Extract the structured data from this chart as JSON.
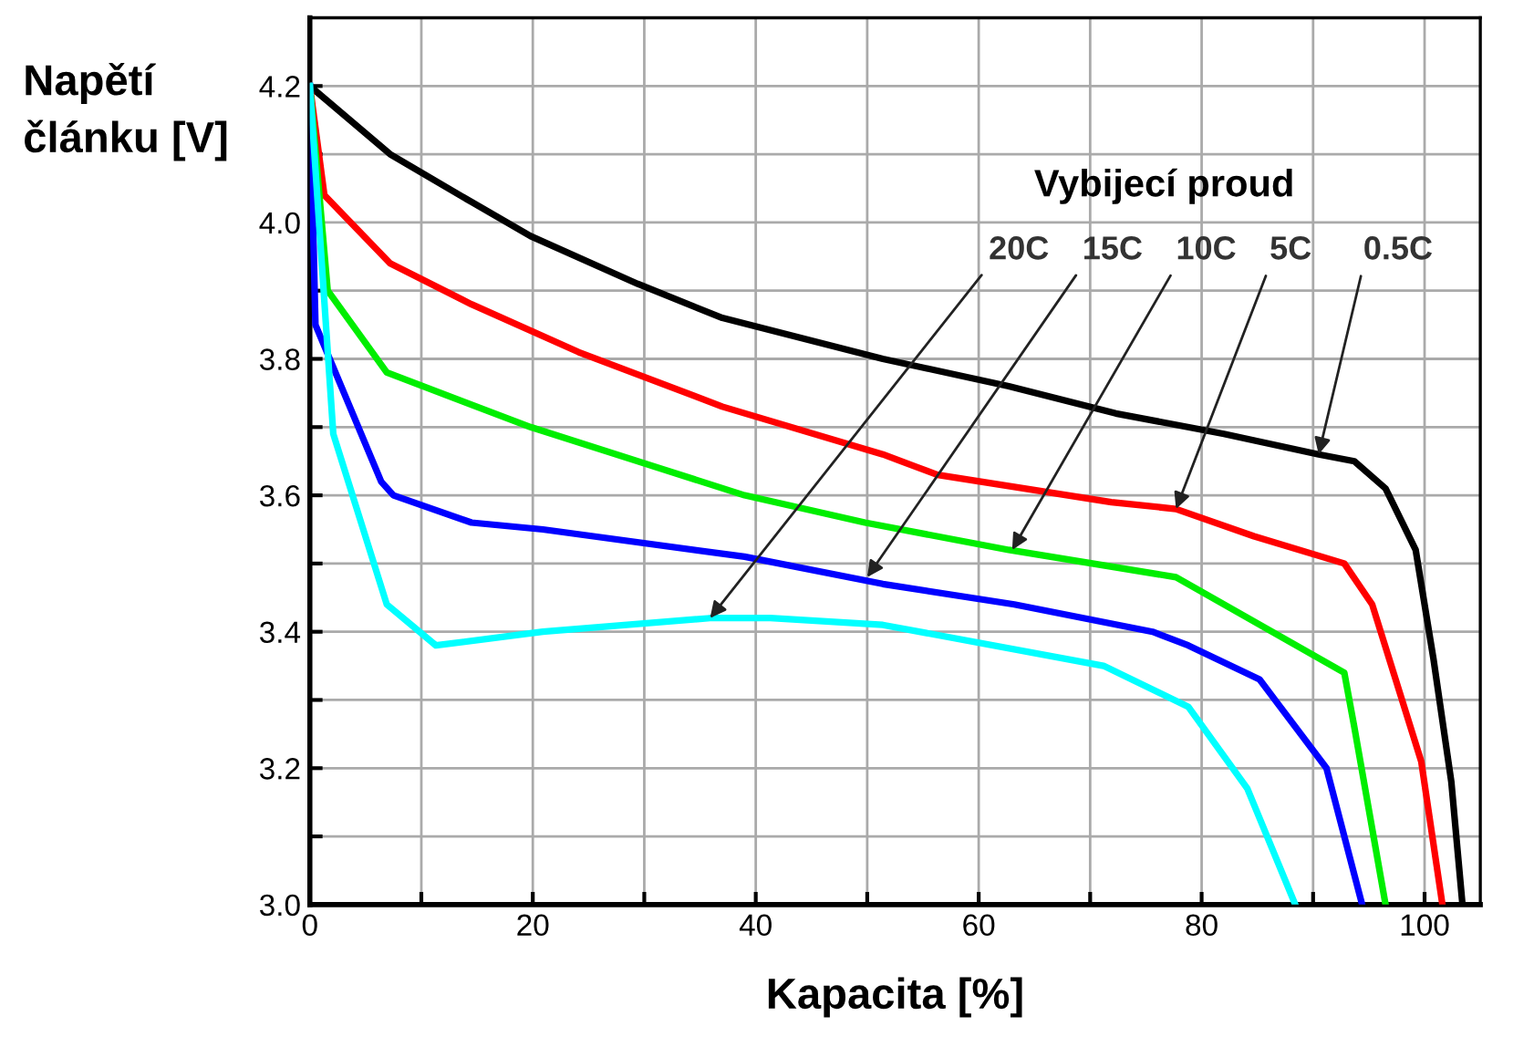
{
  "chart_data": {
    "type": "line",
    "xlabel": "Kapacita [%]",
    "ylabel": "Napětí\nčlánku [V]",
    "xlim": [
      0,
      105
    ],
    "ylim": [
      3.0,
      4.3
    ],
    "xticks": [
      0,
      {
        "value": 10,
        "label": null
      },
      20,
      {
        "value": 30,
        "label": null
      },
      40,
      {
        "value": 50,
        "label": null
      },
      60,
      {
        "value": 70,
        "label": null
      },
      80,
      {
        "value": 90,
        "label": null
      },
      100
    ],
    "yticks": [
      {
        "value": 3.0,
        "label": "3.0"
      },
      {
        "value": 3.1,
        "label": null
      },
      3.2,
      {
        "value": 3.3,
        "label": null
      },
      3.4,
      {
        "value": 3.5,
        "label": null
      },
      3.6,
      {
        "value": 3.7,
        "label": null
      },
      3.8,
      {
        "value": 3.9,
        "label": null
      },
      {
        "value": 4.0,
        "label": "4.0"
      },
      {
        "value": 4.1,
        "label": null
      },
      4.2
    ],
    "grid": true,
    "marker": "none",
    "line_style": "solid",
    "series": [
      {
        "color": "#000000",
        "x": [
          0,
          7.2,
          14.5,
          19.8,
          29.4,
          37,
          51.4,
          62.7,
          72.3,
          82,
          90.5,
          93.7,
          96.5,
          99.2,
          100.8,
          102.4,
          103.4
        ],
        "values": [
          4.2,
          4.1,
          4.03,
          3.98,
          3.91,
          3.86,
          3.8,
          3.76,
          3.72,
          3.69,
          3.66,
          3.65,
          3.61,
          3.52,
          3.36,
          3.18,
          3.0
        ]
      },
      {
        "color": "#ff0000",
        "x": [
          0,
          1.3,
          7.2,
          14.5,
          24.1,
          37,
          51.4,
          56.3,
          71.9,
          77.7,
          84.7,
          92.8,
          95.3,
          99.7,
          101.6
        ],
        "values": [
          4.2,
          4.04,
          3.94,
          3.88,
          3.81,
          3.73,
          3.66,
          3.63,
          3.59,
          3.58,
          3.54,
          3.5,
          3.44,
          3.21,
          3.0
        ]
      },
      {
        "color": "#00ee00",
        "x": [
          0,
          1.6,
          6.9,
          19.8,
          39,
          49.8,
          62.7,
          77.7,
          92.8,
          93.7,
          96.5
        ],
        "values": [
          4.2,
          3.9,
          3.78,
          3.7,
          3.6,
          3.56,
          3.52,
          3.48,
          3.34,
          3.26,
          3.0
        ]
      },
      {
        "color": "#0000ff",
        "x": [
          0,
          0.5,
          6.4,
          7.5,
          14.5,
          20.9,
          39,
          51.4,
          63.2,
          75.6,
          78.8,
          85.2,
          91.2,
          94.4
        ],
        "values": [
          4.2,
          3.85,
          3.62,
          3.6,
          3.56,
          3.55,
          3.51,
          3.47,
          3.44,
          3.4,
          3.38,
          3.33,
          3.2,
          3.0
        ]
      },
      {
        "color": "#00ffff",
        "x": [
          0,
          2.1,
          6.9,
          11.3,
          20.9,
          35.9,
          41.3,
          51.4,
          71.2,
          78.8,
          84.1,
          88.4
        ],
        "values": [
          4.2,
          3.69,
          3.44,
          3.38,
          3.4,
          3.42,
          3.42,
          3.41,
          3.35,
          3.29,
          3.17,
          3.0
        ]
      }
    ],
    "annotations": [
      "Vybijecí proud",
      {
        "text": "20C",
        "x": 35.9,
        "y": 3.42
      },
      {
        "text": "15C",
        "x": 50,
        "y": 3.48
      },
      {
        "text": "10C",
        "x": 63,
        "y": 3.52
      },
      {
        "text": "5C",
        "x": 77.7,
        "y": 3.58
      },
      {
        "text": "0.5C",
        "x": 90.5,
        "y": 3.66
      }
    ]
  }
}
